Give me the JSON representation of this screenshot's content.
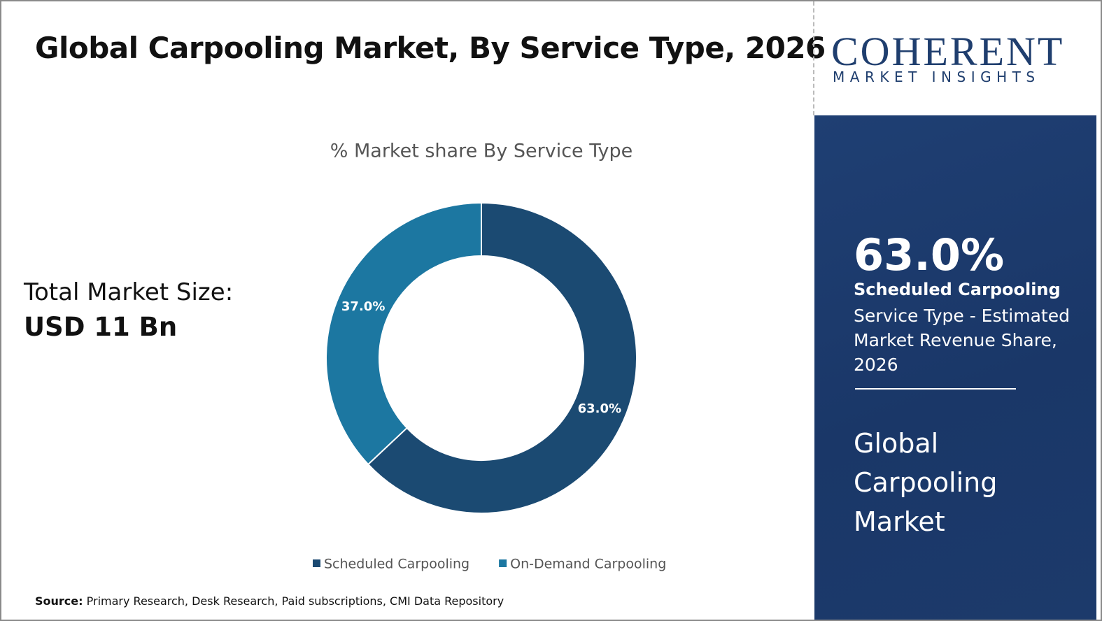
{
  "title": "Global Carpooling Market, By Service Type, 2026",
  "logo": {
    "name": "COHERENT",
    "tagline": "MARKET INSIGHTS"
  },
  "market_size": {
    "label": "Total Market Size:",
    "value": "USD 11 Bn"
  },
  "chart_data": {
    "type": "donut",
    "title": "% Market share By Service Type",
    "categories": [
      "Scheduled Carpooling",
      "On-Demand Carpooling"
    ],
    "values": [
      63.0,
      37.0
    ],
    "value_labels": [
      "63.0%",
      "37.0%"
    ],
    "colors": [
      "#1b4a72",
      "#1c77a1"
    ]
  },
  "highlight": {
    "value": "63.0%",
    "segment": "Scheduled Carpooling",
    "description": "Service Type - Estimated Market Revenue Share, 2026",
    "market": "Global Carpooling Market"
  },
  "source": {
    "label": "Source:",
    "text": "Primary Research, Desk Research, Paid subscriptions, CMI Data Repository"
  }
}
